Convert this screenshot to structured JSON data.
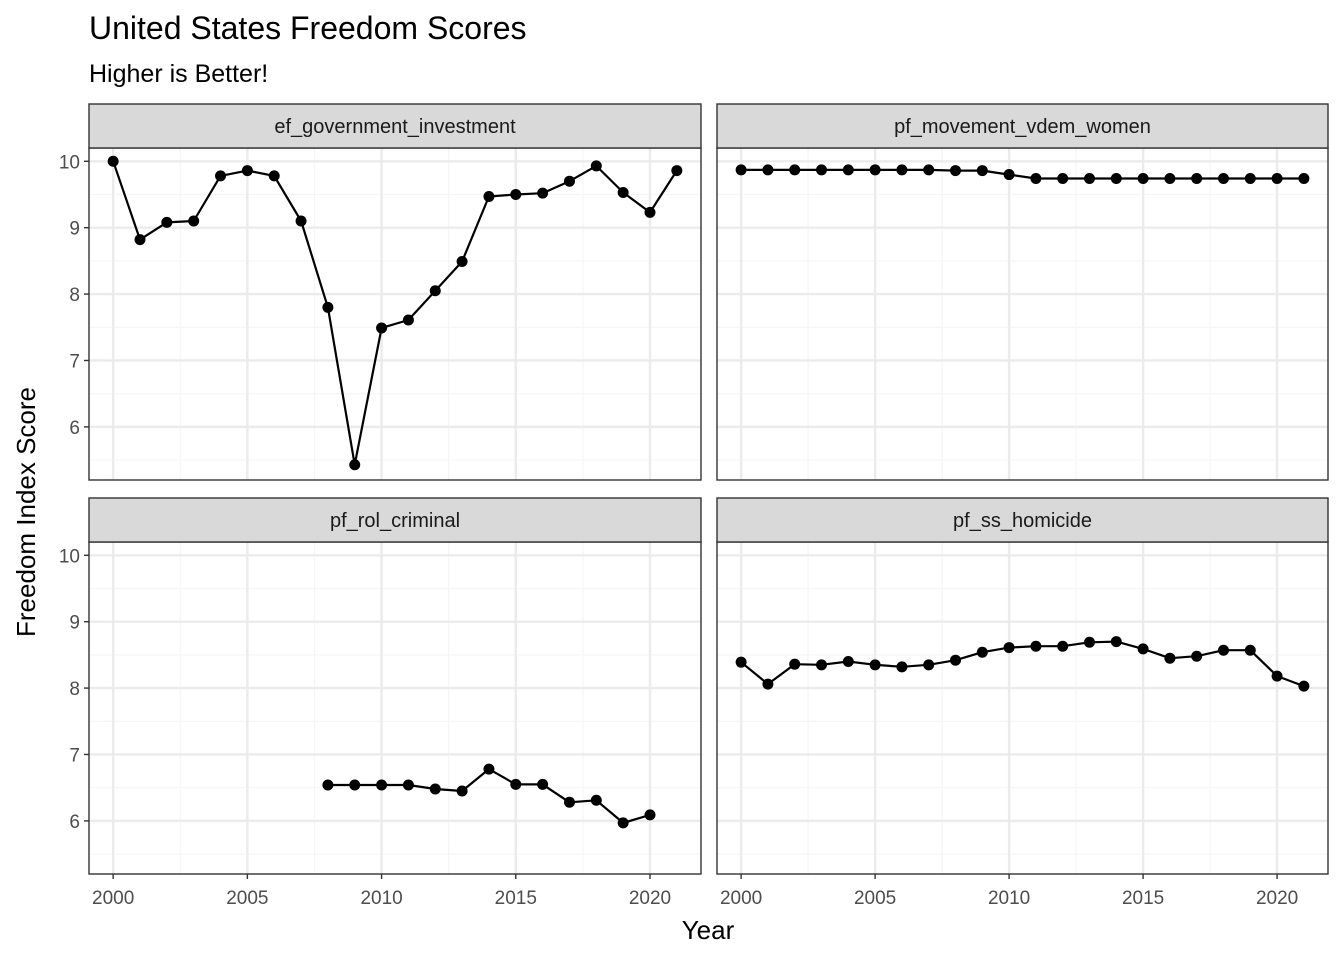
{
  "chart_data": {
    "type": "line",
    "title": "United States Freedom Scores",
    "subtitle": "Higher is Better!",
    "xlabel": "Year",
    "ylabel": "Freedom Index Score",
    "xlim": [
      1999.1,
      2021.9
    ],
    "ylim": [
      5.2,
      10.2
    ],
    "x_ticks": [
      2000,
      2005,
      2010,
      2015,
      2020
    ],
    "y_ticks": [
      6,
      7,
      8,
      9,
      10
    ],
    "grid": true,
    "theme": "bw",
    "colors": {
      "line": "#000000",
      "point": "#000000",
      "strip_fill": "#d9d9d9",
      "grid_major": "#ebebeb",
      "grid_minor": "#f5f5f5",
      "panel_border": "#333333"
    },
    "facets": [
      {
        "label": "ef_government_investment",
        "x": [
          2000,
          2001,
          2002,
          2003,
          2004,
          2005,
          2006,
          2007,
          2008,
          2009,
          2010,
          2011,
          2012,
          2013,
          2014,
          2015,
          2016,
          2017,
          2018,
          2019,
          2020,
          2021
        ],
        "y": [
          10.0,
          8.82,
          9.08,
          9.1,
          9.78,
          9.86,
          9.78,
          9.1,
          7.8,
          5.43,
          7.49,
          7.61,
          8.05,
          8.49,
          9.47,
          9.5,
          9.52,
          9.7,
          9.93,
          9.53,
          9.23,
          9.86
        ]
      },
      {
        "label": "pf_movement_vdem_women",
        "x": [
          2000,
          2001,
          2002,
          2003,
          2004,
          2005,
          2006,
          2007,
          2008,
          2009,
          2010,
          2011,
          2012,
          2013,
          2014,
          2015,
          2016,
          2017,
          2018,
          2019,
          2020,
          2021
        ],
        "y": [
          9.87,
          9.87,
          9.87,
          9.87,
          9.87,
          9.87,
          9.87,
          9.87,
          9.86,
          9.86,
          9.8,
          9.74,
          9.74,
          9.74,
          9.74,
          9.74,
          9.74,
          9.74,
          9.74,
          9.74,
          9.74,
          9.74
        ]
      },
      {
        "label": "pf_rol_criminal",
        "x": [
          2008,
          2009,
          2010,
          2011,
          2012,
          2013,
          2014,
          2015,
          2016,
          2017,
          2018,
          2019,
          2020
        ],
        "y": [
          6.54,
          6.54,
          6.54,
          6.54,
          6.48,
          6.45,
          6.78,
          6.55,
          6.55,
          6.28,
          6.31,
          5.97,
          6.09
        ]
      },
      {
        "label": "pf_ss_homicide",
        "x": [
          2000,
          2001,
          2002,
          2003,
          2004,
          2005,
          2006,
          2007,
          2008,
          2009,
          2010,
          2011,
          2012,
          2013,
          2014,
          2015,
          2016,
          2017,
          2018,
          2019,
          2020,
          2021
        ],
        "y": [
          8.39,
          8.06,
          8.36,
          8.35,
          8.4,
          8.35,
          8.32,
          8.35,
          8.42,
          8.54,
          8.61,
          8.63,
          8.63,
          8.69,
          8.7,
          8.59,
          8.45,
          8.48,
          8.57,
          8.57,
          8.18,
          8.03
        ]
      }
    ]
  }
}
